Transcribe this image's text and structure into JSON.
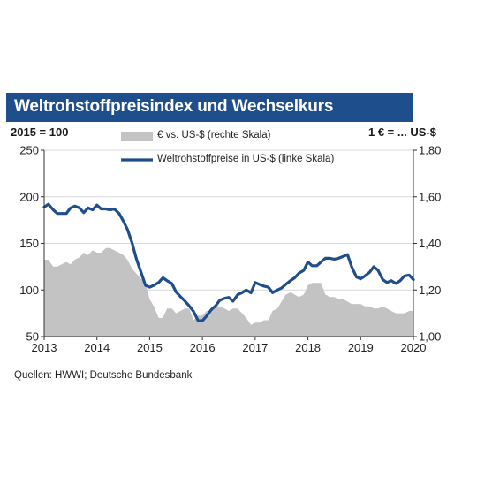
{
  "header": {
    "title": "Weltrohstoffpreisindex und Wechselkurs",
    "left_unit": "2015 = 100",
    "right_unit": "1 € = ... US-$"
  },
  "source": "Quellen: HWWI; Deutsche Bundesbank",
  "colors": {
    "title_bg": "#1f4e8c",
    "area": "#c3c3c3",
    "line": "#1f4e8c",
    "grid": "#d9d9d9"
  },
  "chart_data": {
    "type": "line",
    "x_ticks": [
      "2013",
      "2014",
      "2015",
      "2016",
      "2017",
      "2018",
      "2019",
      "2020"
    ],
    "xlim": [
      2013,
      2020
    ],
    "left_axis": {
      "ticks": [
        "250",
        "200",
        "150",
        "100",
        "50"
      ],
      "ylim": [
        50,
        250
      ]
    },
    "right_axis": {
      "ticks": [
        "1,80",
        "1,60",
        "1,40",
        "1,20",
        "1,00"
      ],
      "ylim": [
        1.0,
        1.8
      ]
    },
    "legend": {
      "position": "top-center"
    },
    "series": [
      {
        "name": "€ vs. US-$ (rechte Skala)",
        "type": "area",
        "axis": "right",
        "x": [
          2013.0,
          2013.08,
          2013.17,
          2013.25,
          2013.33,
          2013.42,
          2013.5,
          2013.58,
          2013.67,
          2013.75,
          2013.83,
          2013.92,
          2014.0,
          2014.08,
          2014.17,
          2014.25,
          2014.33,
          2014.42,
          2014.5,
          2014.58,
          2014.67,
          2014.75,
          2014.83,
          2014.92,
          2015.0,
          2015.08,
          2015.17,
          2015.25,
          2015.33,
          2015.42,
          2015.5,
          2015.58,
          2015.67,
          2015.75,
          2015.83,
          2015.92,
          2016.0,
          2016.08,
          2016.17,
          2016.25,
          2016.33,
          2016.42,
          2016.5,
          2016.58,
          2016.67,
          2016.75,
          2016.83,
          2016.92,
          2017.0,
          2017.08,
          2017.17,
          2017.25,
          2017.33,
          2017.42,
          2017.5,
          2017.58,
          2017.67,
          2017.75,
          2017.83,
          2017.92,
          2018.0,
          2018.08,
          2018.17,
          2018.25,
          2018.33,
          2018.42,
          2018.5,
          2018.58,
          2018.67,
          2018.75,
          2018.83,
          2018.92,
          2019.0,
          2019.08,
          2019.17,
          2019.25,
          2019.33,
          2019.42,
          2019.5,
          2019.58,
          2019.67,
          2019.75,
          2019.83,
          2019.92,
          2020.0
        ],
        "values": [
          1.33,
          1.33,
          1.3,
          1.3,
          1.31,
          1.32,
          1.31,
          1.33,
          1.34,
          1.36,
          1.35,
          1.37,
          1.36,
          1.36,
          1.38,
          1.38,
          1.37,
          1.36,
          1.35,
          1.33,
          1.29,
          1.27,
          1.25,
          1.23,
          1.16,
          1.13,
          1.08,
          1.08,
          1.12,
          1.12,
          1.1,
          1.11,
          1.12,
          1.12,
          1.07,
          1.09,
          1.09,
          1.11,
          1.11,
          1.13,
          1.13,
          1.12,
          1.11,
          1.12,
          1.12,
          1.1,
          1.08,
          1.05,
          1.06,
          1.06,
          1.07,
          1.07,
          1.11,
          1.12,
          1.15,
          1.18,
          1.19,
          1.18,
          1.17,
          1.18,
          1.22,
          1.23,
          1.23,
          1.23,
          1.18,
          1.17,
          1.17,
          1.16,
          1.16,
          1.15,
          1.14,
          1.14,
          1.14,
          1.13,
          1.13,
          1.12,
          1.12,
          1.13,
          1.12,
          1.11,
          1.1,
          1.1,
          1.1,
          1.11,
          1.11
        ]
      },
      {
        "name": "Weltrohstoffpreise in US-$ (linke Skala)",
        "type": "line",
        "axis": "left",
        "x": [
          2013.0,
          2013.08,
          2013.17,
          2013.25,
          2013.33,
          2013.42,
          2013.5,
          2013.58,
          2013.67,
          2013.75,
          2013.83,
          2013.92,
          2014.0,
          2014.08,
          2014.17,
          2014.25,
          2014.33,
          2014.42,
          2014.5,
          2014.58,
          2014.67,
          2014.75,
          2014.83,
          2014.92,
          2015.0,
          2015.08,
          2015.17,
          2015.25,
          2015.33,
          2015.42,
          2015.5,
          2015.58,
          2015.67,
          2015.75,
          2015.83,
          2015.92,
          2016.0,
          2016.08,
          2016.17,
          2016.25,
          2016.33,
          2016.42,
          2016.5,
          2016.58,
          2016.67,
          2016.75,
          2016.83,
          2016.92,
          2017.0,
          2017.08,
          2017.17,
          2017.25,
          2017.33,
          2017.42,
          2017.5,
          2017.58,
          2017.67,
          2017.75,
          2017.83,
          2017.92,
          2018.0,
          2018.08,
          2018.17,
          2018.25,
          2018.33,
          2018.42,
          2018.5,
          2018.58,
          2018.67,
          2018.75,
          2018.83,
          2018.92,
          2019.0,
          2019.08,
          2019.17,
          2019.25,
          2019.33,
          2019.42,
          2019.5,
          2019.58,
          2019.67,
          2019.75,
          2019.83,
          2019.92,
          2020.0
        ],
        "values": [
          189,
          192,
          186,
          182,
          182,
          182,
          188,
          190,
          188,
          183,
          188,
          186,
          191,
          187,
          187,
          186,
          187,
          182,
          174,
          165,
          150,
          133,
          120,
          105,
          103,
          105,
          108,
          113,
          110,
          107,
          98,
          93,
          88,
          83,
          77,
          67,
          67,
          72,
          79,
          83,
          89,
          91,
          92,
          88,
          95,
          97,
          100,
          97,
          108,
          106,
          104,
          103,
          97,
          100,
          102,
          106,
          110,
          113,
          118,
          121,
          130,
          126,
          126,
          130,
          134,
          134,
          133,
          134,
          136,
          138,
          125,
          114,
          112,
          115,
          119,
          125,
          121,
          111,
          108,
          110,
          107,
          110,
          115,
          116,
          111
        ]
      }
    ]
  }
}
